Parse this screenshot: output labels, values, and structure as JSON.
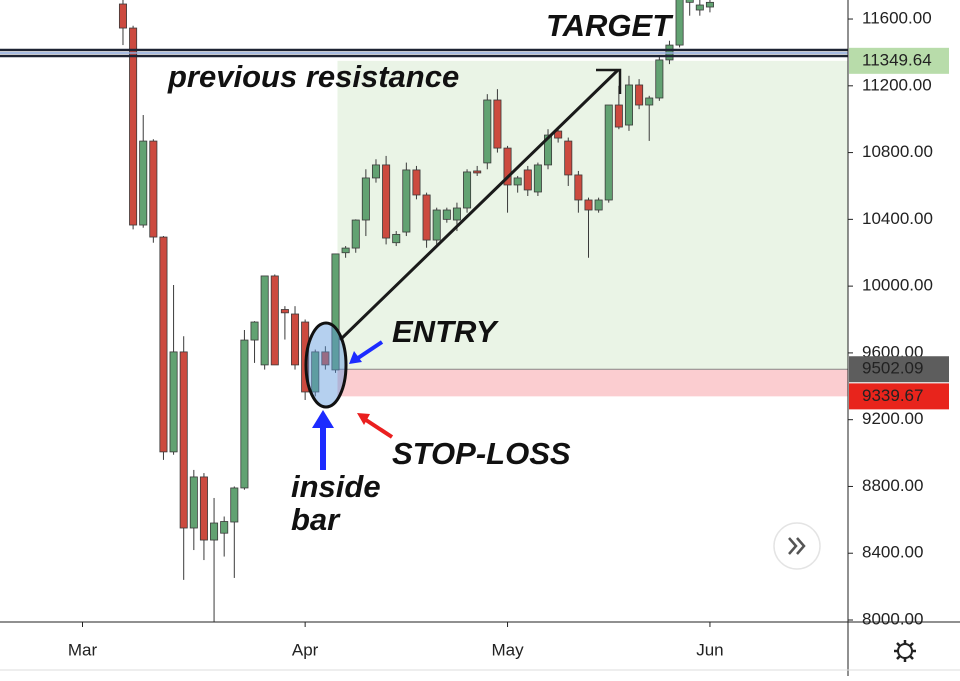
{
  "chart_data": {
    "type": "candlestick",
    "categories": [
      "Mar",
      null,
      null,
      null,
      null,
      null,
      null,
      null,
      null,
      null,
      null,
      null,
      null,
      null,
      null,
      null,
      null,
      null,
      null,
      null,
      null,
      null,
      "Apr",
      null,
      null,
      null,
      null,
      null,
      null,
      null,
      null,
      null,
      null,
      null,
      null,
      null,
      null,
      null,
      null,
      null,
      null,
      null,
      "May",
      null,
      null,
      null,
      null,
      null,
      null,
      null,
      null,
      null,
      null,
      null,
      null,
      null,
      null,
      null,
      null,
      null,
      null,
      null,
      "Jun"
    ],
    "open": [
      null,
      null,
      null,
      null,
      11690,
      11546,
      10366,
      10869,
      10294,
      9007,
      9606,
      8551,
      8857,
      8479,
      8520,
      8587,
      8791,
      9677,
      9528,
      10061,
      9860,
      9833,
      9785,
      9366,
      9606,
      9498,
      10200,
      10228,
      10396,
      10648,
      10726,
      10260,
      10324,
      10696,
      10546,
      10276,
      10400,
      10396,
      10468,
      10690,
      10738,
      11115,
      10827,
      10606,
      10696,
      10564,
      10726,
      10929,
      10869,
      10666,
      10516,
      10456,
      10516,
      11085,
      10965,
      11205,
      11085,
      11127,
      11355,
      11444,
      11700,
      11654,
      11672
    ],
    "high": [
      null,
      null,
      null,
      null,
      11750,
      11560,
      11025,
      10880,
      10300,
      10007,
      9700,
      8899,
      8880,
      8731,
      8620,
      8800,
      9737,
      9790,
      10061,
      10070,
      9880,
      9880,
      9800,
      9620,
      9640,
      10193,
      10240,
      10400,
      10700,
      10760,
      10780,
      10330,
      10740,
      10720,
      10560,
      10470,
      10470,
      10500,
      10700,
      10720,
      11150,
      11180,
      10840,
      10660,
      10720,
      10740,
      10940,
      10950,
      10890,
      10690,
      10530,
      10530,
      11085,
      11200,
      11260,
      11240,
      11140,
      11380,
      11470,
      11760,
      11800,
      11720,
      11730
    ],
    "low": [
      null,
      null,
      null,
      null,
      11444,
      10340,
      10350,
      10260,
      8959,
      8990,
      8240,
      8419,
      8359,
      7990,
      8380,
      8252,
      8780,
      9540,
      9500,
      9528,
      9680,
      9500,
      9318,
      9340,
      9500,
      9480,
      10170,
      10200,
      10300,
      10620,
      10250,
      10240,
      10300,
      10520,
      10230,
      10240,
      10380,
      10330,
      10440,
      10660,
      10700,
      10800,
      10440,
      10560,
      10540,
      10540,
      10700,
      10860,
      10600,
      10440,
      10170,
      10440,
      10500,
      10940,
      10930,
      11060,
      10870,
      11110,
      11330,
      11430,
      11620,
      11620,
      11640
    ],
    "close": [
      null,
      null,
      null,
      null,
      11546,
      10366,
      10869,
      10294,
      9007,
      9606,
      8551,
      8857,
      8479,
      8581,
      8590,
      8791,
      9677,
      9785,
      10061,
      9528,
      9840,
      9528,
      9366,
      9606,
      9528,
      10193,
      10228,
      10396,
      10648,
      10726,
      10288,
      10310,
      10696,
      10546,
      10276,
      10456,
      10456,
      10468,
      10684,
      10678,
      11115,
      10827,
      10606,
      10648,
      10576,
      10726,
      10905,
      10887,
      10666,
      10516,
      10456,
      10516,
      11085,
      10953,
      11205,
      11085,
      11127,
      11355,
      11444,
      11740,
      11760,
      11684,
      11700
    ],
    "up_color": "#62a272",
    "down_color": "#cc4a3f",
    "ylim": [
      7988,
      11714
    ],
    "yticks": [
      {
        "value": 8000,
        "label": "8000.00"
      },
      {
        "value": 8400,
        "label": "8400.00"
      },
      {
        "value": 8800,
        "label": "8800.00"
      },
      {
        "value": 9200,
        "label": "9200.00"
      },
      {
        "value": 9600,
        "label": "9600.00"
      },
      {
        "value": 10000,
        "label": "10000.00"
      },
      {
        "value": 10400,
        "label": "10400.00"
      },
      {
        "value": 10800,
        "label": "10800.00"
      },
      {
        "value": 11200,
        "label": "11200.00"
      },
      {
        "value": 11600,
        "label": "11600.00"
      }
    ],
    "price_levels": [
      {
        "value": 11349.64,
        "color": "#b8dcaa",
        "text_color": "#111111"
      },
      {
        "value": 9502.09,
        "color": "#5d5d5d",
        "text_color": "#ffffff"
      },
      {
        "value": 9339.67,
        "color": "#e8241c",
        "text_color": "#ffffff"
      }
    ],
    "annotations": [
      "TARGET",
      "previous resistance",
      "ENTRY",
      "STOP-LOSS",
      "inside",
      "bar"
    ]
  }
}
